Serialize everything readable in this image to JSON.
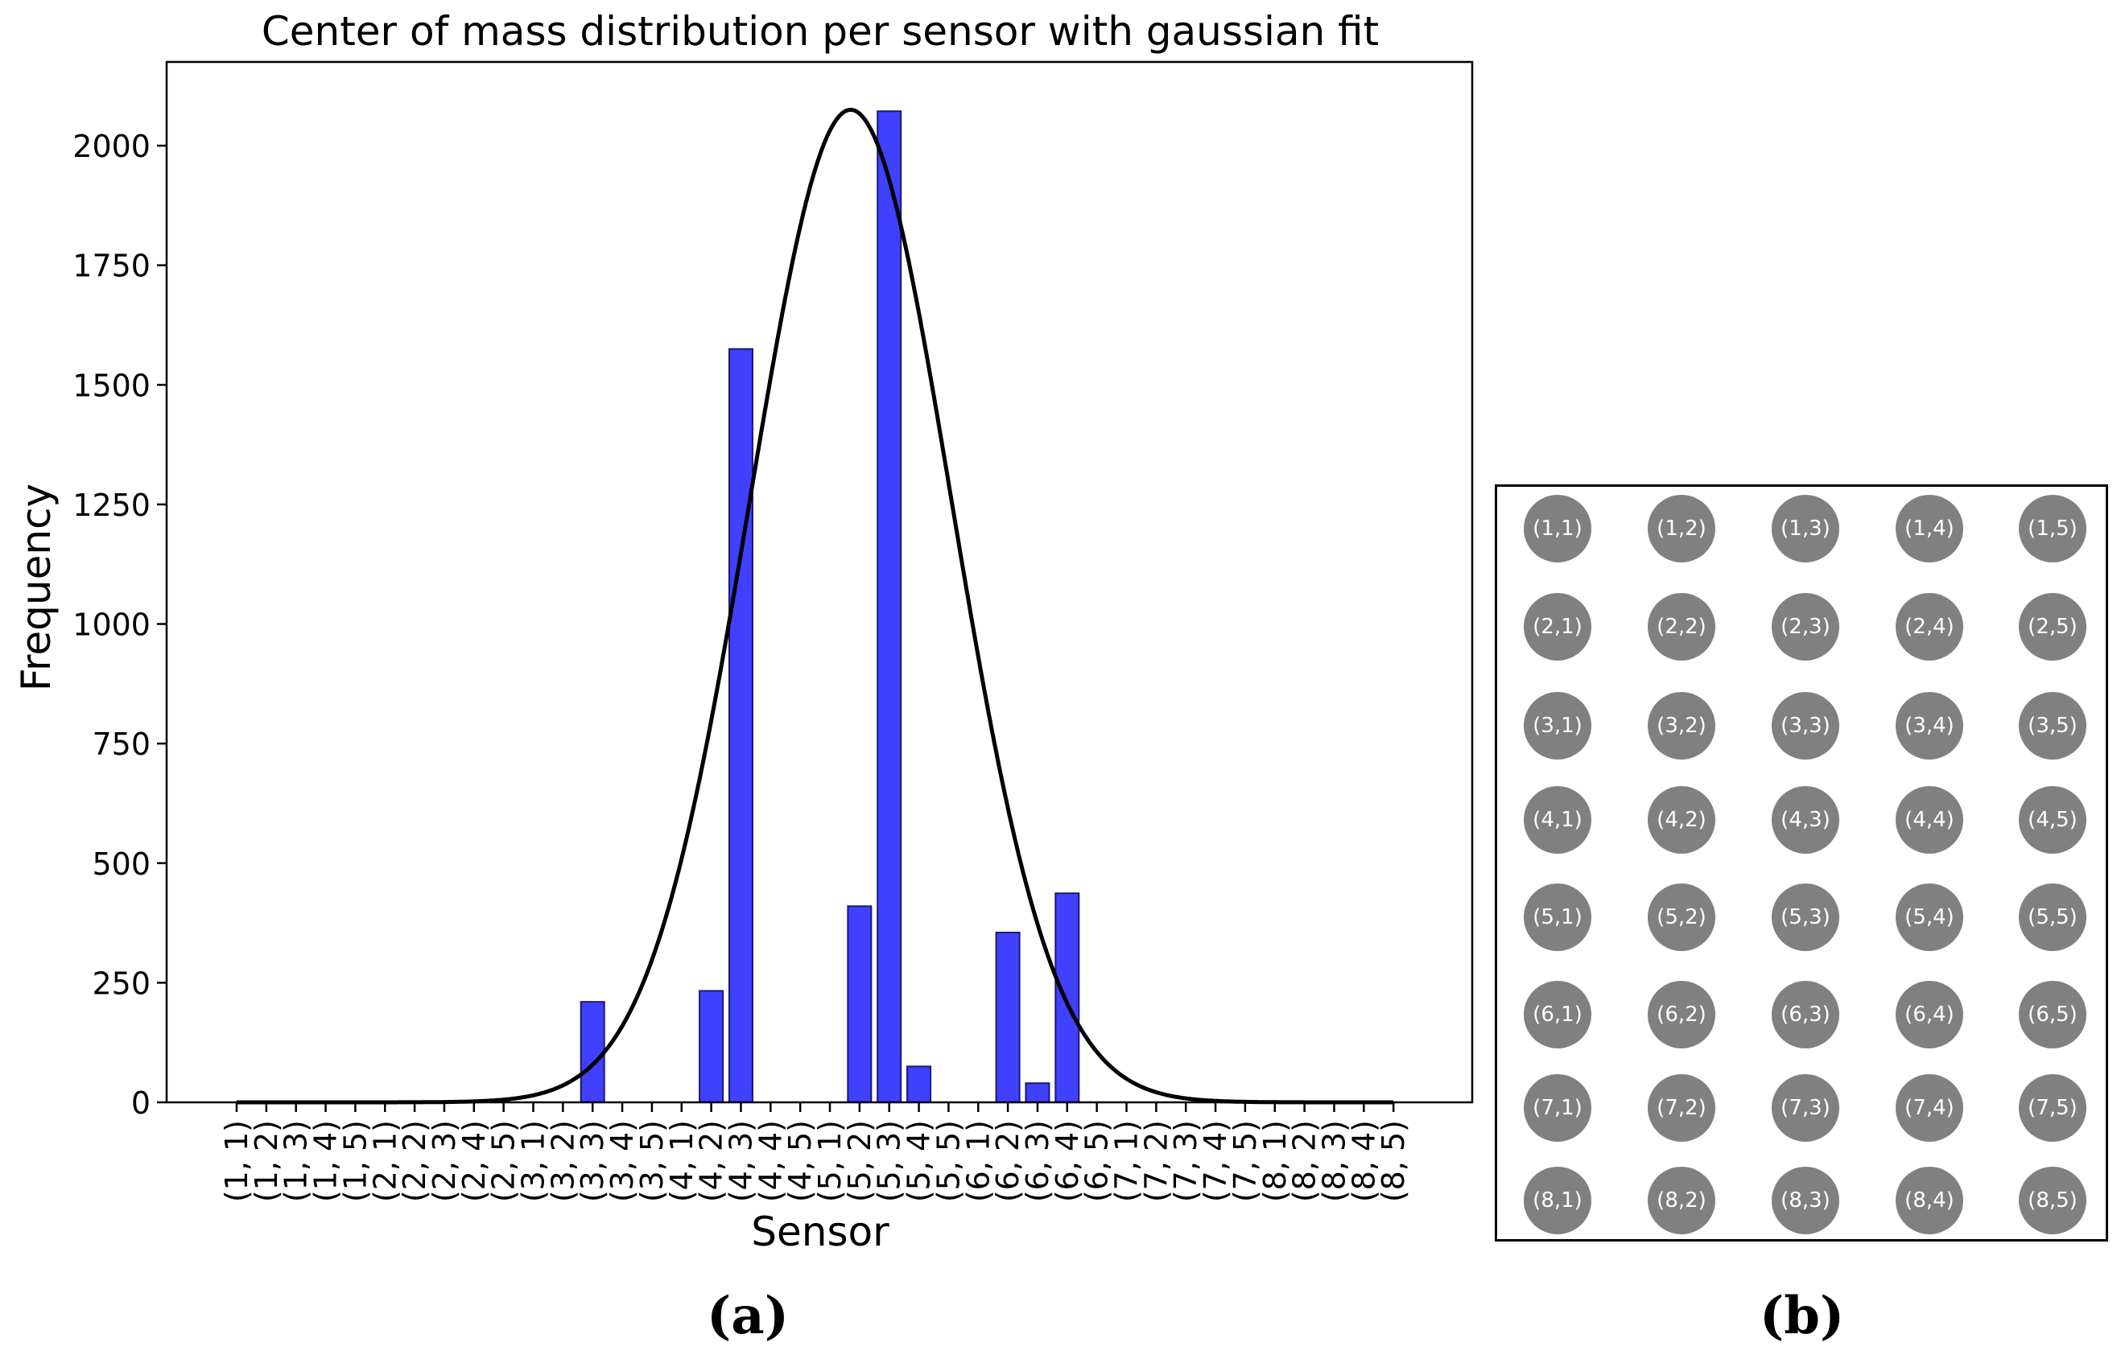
{
  "chart_data": {
    "type": "bar",
    "title": "Center of mass distribution per sensor with gaussian fit",
    "xlabel": "Sensor",
    "ylabel": "Frequency",
    "ylim": [
      0,
      2175
    ],
    "yticks": [
      0,
      250,
      500,
      750,
      1000,
      1250,
      1500,
      1750,
      2000
    ],
    "categories": [
      "(1, 1)",
      "(1, 2)",
      "(1, 3)",
      "(1, 4)",
      "(1, 5)",
      "(2, 1)",
      "(2, 2)",
      "(2, 3)",
      "(2, 4)",
      "(2, 5)",
      "(3, 1)",
      "(3, 2)",
      "(3, 3)",
      "(3, 4)",
      "(3, 5)",
      "(4, 1)",
      "(4, 2)",
      "(4, 3)",
      "(4, 4)",
      "(4, 5)",
      "(5, 1)",
      "(5, 2)",
      "(5, 3)",
      "(5, 4)",
      "(5, 5)",
      "(6, 1)",
      "(6, 2)",
      "(6, 3)",
      "(6, 4)",
      "(6, 5)",
      "(7, 1)",
      "(7, 2)",
      "(7, 3)",
      "(7, 4)",
      "(7, 5)",
      "(8, 1)",
      "(8, 2)",
      "(8, 3)",
      "(8, 4)",
      "(8, 5)"
    ],
    "values": [
      0,
      0,
      0,
      0,
      0,
      0,
      0,
      0,
      0,
      0,
      0,
      0,
      210,
      0,
      0,
      0,
      233,
      1575,
      0,
      0,
      0,
      410,
      2072,
      75,
      0,
      0,
      355,
      40,
      437,
      0,
      0,
      0,
      0,
      0,
      0,
      0,
      0,
      0,
      0,
      0
    ],
    "fit": {
      "type": "gaussian",
      "amplitude": 2075,
      "mean_index": 20.7,
      "sigma_index": 3.4
    },
    "bar_color": "#4040ff",
    "fit_color": "#000000",
    "grid": false
  },
  "panels": {
    "a": "(a)",
    "b": "(b)"
  },
  "sensor_grid": {
    "rows": [
      [
        "(1,1)",
        "(1,2)",
        "(1,3)",
        "(1,4)",
        "(1,5)"
      ],
      [
        "(2,1)",
        "(2,2)",
        "(2,3)",
        "(2,4)",
        "(2,5)"
      ],
      [
        "(3,1)",
        "(3,2)",
        "(3,3)",
        "(3,4)",
        "(3,5)"
      ],
      [
        "(4,1)",
        "(4,2)",
        "(4,3)",
        "(4,4)",
        "(4,5)"
      ],
      [
        "(5,1)",
        "(5,2)",
        "(5,3)",
        "(5,4)",
        "(5,5)"
      ],
      [
        "(6,1)",
        "(6,2)",
        "(6,3)",
        "(6,4)",
        "(6,5)"
      ],
      [
        "(7,1)",
        "(7,2)",
        "(7,3)",
        "(7,4)",
        "(7,5)"
      ],
      [
        "(8,1)",
        "(8,2)",
        "(8,3)",
        "(8,4)",
        "(8,5)"
      ]
    ],
    "circle_color": "#808080"
  }
}
